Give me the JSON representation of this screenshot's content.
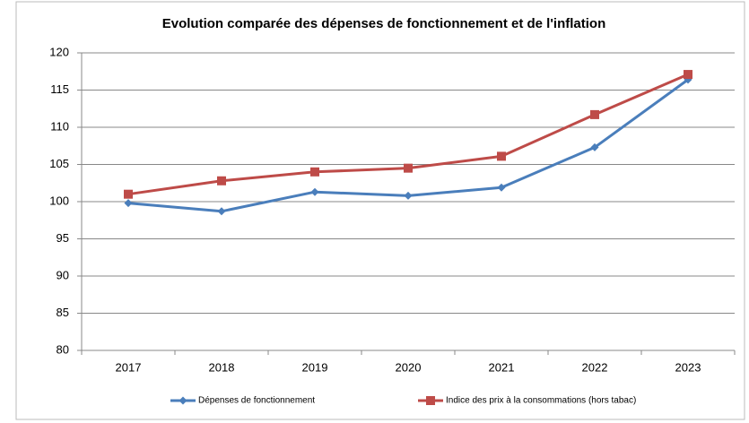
{
  "chart_data": {
    "type": "line",
    "title": "Evolution comparée des dépenses de fonctionnement et de l'inflation",
    "categories": [
      "2017",
      "2018",
      "2019",
      "2020",
      "2021",
      "2022",
      "2023"
    ],
    "series": [
      {
        "name": "Dépenses de fonctionnement",
        "color": "#4a7ebb",
        "marker": "diamond",
        "values": [
          99.8,
          98.7,
          101.3,
          100.8,
          101.9,
          107.3,
          116.4
        ]
      },
      {
        "name": "Indice des prix à la consommations (hors tabac)",
        "color": "#be4b48",
        "marker": "square",
        "values": [
          101.0,
          102.8,
          104.0,
          104.5,
          106.1,
          111.7,
          117.1
        ]
      }
    ],
    "ylim": [
      80,
      120
    ],
    "yticks": [
      80,
      85,
      90,
      95,
      100,
      105,
      110,
      115,
      120
    ],
    "grid": true,
    "legend": "bottom"
  }
}
